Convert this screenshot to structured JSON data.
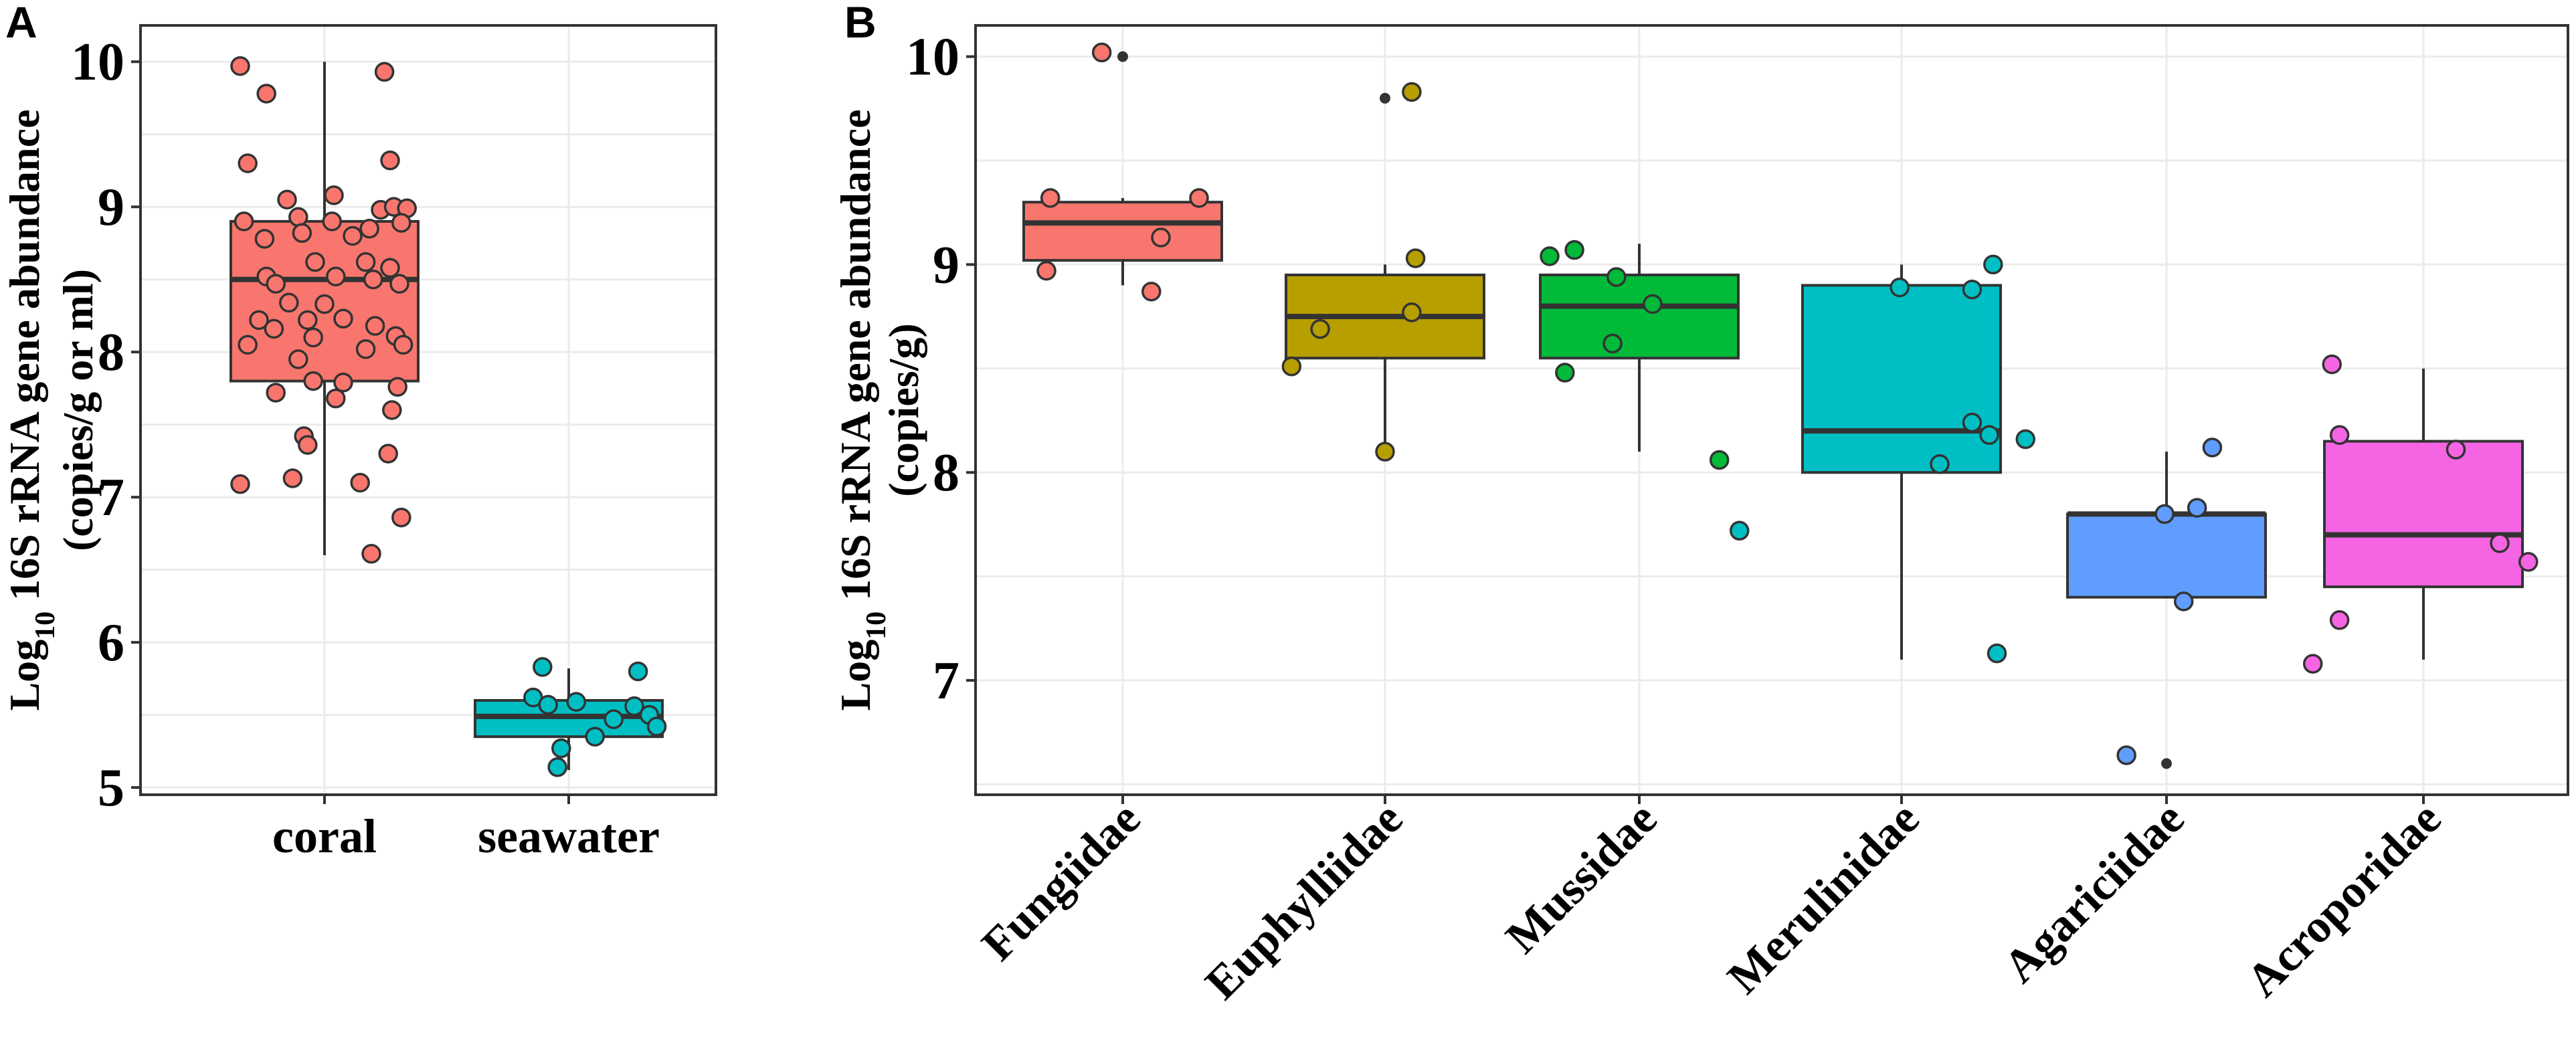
{
  "chart_data": [
    {
      "panel_label": "A",
      "type": "boxplot",
      "ylabel_main": "Log",
      "ylabel_sub": "10",
      "ylabel_rest": " 16S rRNA gene abundance",
      "ylabel_line2": "(copies/g or ml)",
      "ylim": [
        4.95,
        10.25
      ],
      "yticks": [
        5,
        6,
        7,
        8,
        9,
        10
      ],
      "ytick_labels": [
        "5",
        "6",
        "7",
        "8",
        "9",
        "10"
      ],
      "grid": true,
      "categories": [
        "coral",
        "seawater"
      ],
      "groups": [
        {
          "name": "coral",
          "color": "#F8766D",
          "q1": 7.8,
          "median": 8.5,
          "q3": 8.9,
          "whisker_low": 6.6,
          "whisker_high": 10.0,
          "points": [
            {
              "dx": -0.45,
              "y": 9.97
            },
            {
              "dx": 0.32,
              "y": 9.93
            },
            {
              "dx": -0.31,
              "y": 9.78
            },
            {
              "dx": -0.41,
              "y": 9.3
            },
            {
              "dx": 0.35,
              "y": 9.32
            },
            {
              "dx": -0.2,
              "y": 9.05
            },
            {
              "dx": 0.05,
              "y": 9.08
            },
            {
              "dx": 0.3,
              "y": 8.98
            },
            {
              "dx": 0.37,
              "y": 9.0
            },
            {
              "dx": 0.44,
              "y": 8.99
            },
            {
              "dx": -0.43,
              "y": 8.9
            },
            {
              "dx": -0.14,
              "y": 8.93
            },
            {
              "dx": -0.32,
              "y": 8.78
            },
            {
              "dx": -0.12,
              "y": 8.82
            },
            {
              "dx": 0.04,
              "y": 8.9
            },
            {
              "dx": 0.15,
              "y": 8.8
            },
            {
              "dx": 0.24,
              "y": 8.85
            },
            {
              "dx": 0.41,
              "y": 8.89
            },
            {
              "dx": -0.05,
              "y": 8.62
            },
            {
              "dx": 0.22,
              "y": 8.62
            },
            {
              "dx": 0.35,
              "y": 8.58
            },
            {
              "dx": -0.31,
              "y": 8.52
            },
            {
              "dx": -0.26,
              "y": 8.47
            },
            {
              "dx": 0.06,
              "y": 8.52
            },
            {
              "dx": 0.26,
              "y": 8.5
            },
            {
              "dx": 0.4,
              "y": 8.47
            },
            {
              "dx": -0.19,
              "y": 8.34
            },
            {
              "dx": 0.0,
              "y": 8.33
            },
            {
              "dx": -0.35,
              "y": 8.22
            },
            {
              "dx": -0.09,
              "y": 8.22
            },
            {
              "dx": 0.1,
              "y": 8.23
            },
            {
              "dx": 0.38,
              "y": 8.11
            },
            {
              "dx": 0.27,
              "y": 8.18
            },
            {
              "dx": -0.27,
              "y": 8.16
            },
            {
              "dx": -0.41,
              "y": 8.05
            },
            {
              "dx": -0.06,
              "y": 8.1
            },
            {
              "dx": 0.22,
              "y": 8.02
            },
            {
              "dx": -0.14,
              "y": 7.95
            },
            {
              "dx": 0.42,
              "y": 8.05
            },
            {
              "dx": -0.06,
              "y": 7.8
            },
            {
              "dx": 0.1,
              "y": 7.79
            },
            {
              "dx": -0.26,
              "y": 7.72
            },
            {
              "dx": 0.06,
              "y": 7.68
            },
            {
              "dx": 0.39,
              "y": 7.76
            },
            {
              "dx": 0.36,
              "y": 7.6
            },
            {
              "dx": -0.11,
              "y": 7.42
            },
            {
              "dx": -0.09,
              "y": 7.36
            },
            {
              "dx": 0.34,
              "y": 7.3
            },
            {
              "dx": -0.17,
              "y": 7.13
            },
            {
              "dx": -0.45,
              "y": 7.09
            },
            {
              "dx": 0.19,
              "y": 7.1
            },
            {
              "dx": 0.41,
              "y": 6.86
            },
            {
              "dx": 0.25,
              "y": 6.61
            }
          ]
        },
        {
          "name": "seawater",
          "color": "#00BFC4",
          "q1": 5.35,
          "median": 5.49,
          "q3": 5.6,
          "whisker_low": 5.12,
          "whisker_high": 5.82,
          "points": [
            {
              "dx": -0.14,
              "y": 5.83
            },
            {
              "dx": 0.37,
              "y": 5.8
            },
            {
              "dx": -0.19,
              "y": 5.62
            },
            {
              "dx": -0.11,
              "y": 5.57
            },
            {
              "dx": 0.04,
              "y": 5.59
            },
            {
              "dx": 0.35,
              "y": 5.56
            },
            {
              "dx": 0.43,
              "y": 5.5
            },
            {
              "dx": 0.24,
              "y": 5.47
            },
            {
              "dx": 0.47,
              "y": 5.42
            },
            {
              "dx": 0.14,
              "y": 5.35
            },
            {
              "dx": -0.04,
              "y": 5.27
            },
            {
              "dx": -0.06,
              "y": 5.14
            }
          ]
        }
      ]
    },
    {
      "panel_label": "B",
      "type": "boxplot",
      "ylabel_main": "Log",
      "ylabel_sub": "10",
      "ylabel_rest": " 16S rRNA gene abundance",
      "ylabel_line2": "(copies/g)",
      "ylim": [
        6.45,
        10.15
      ],
      "yticks": [
        7,
        8,
        9,
        10
      ],
      "ytick_labels": [
        "7",
        "8",
        "9",
        "10"
      ],
      "grid": true,
      "categories": [
        "Fungiidae",
        "Euphylliidae",
        "Mussidae",
        "Merulinidae",
        "Agariciidae",
        "Acroporidae"
      ],
      "groups": [
        {
          "name": "Fungiidae",
          "color": "#F8766D",
          "q1": 9.02,
          "median": 9.2,
          "q3": 9.3,
          "whisker_low": 8.9,
          "whisker_high": 9.32,
          "outliers": [
            10.0
          ],
          "points": [
            {
              "dx": -0.11,
              "y": 10.02
            },
            {
              "dx": -0.38,
              "y": 9.32
            },
            {
              "dx": 0.4,
              "y": 9.32
            },
            {
              "dx": 0.2,
              "y": 9.13
            },
            {
              "dx": -0.4,
              "y": 8.97
            },
            {
              "dx": 0.15,
              "y": 8.87
            }
          ]
        },
        {
          "name": "Euphylliidae",
          "color": "#B79F00",
          "q1": 8.55,
          "median": 8.75,
          "q3": 8.95,
          "whisker_low": 8.1,
          "whisker_high": 9.0,
          "outliers": [
            9.8
          ],
          "points": [
            {
              "dx": 0.14,
              "y": 9.83
            },
            {
              "dx": 0.16,
              "y": 9.03
            },
            {
              "dx": -0.34,
              "y": 8.69
            },
            {
              "dx": 0.14,
              "y": 8.77
            },
            {
              "dx": -0.49,
              "y": 8.51
            },
            {
              "dx": 0.0,
              "y": 8.1
            }
          ]
        },
        {
          "name": "Mussidae",
          "color": "#00BA38",
          "q1": 8.55,
          "median": 8.8,
          "q3": 8.95,
          "whisker_low": 8.1,
          "whisker_high": 9.1,
          "outliers": [],
          "points": [
            {
              "dx": -0.47,
              "y": 9.04
            },
            {
              "dx": -0.34,
              "y": 9.07
            },
            {
              "dx": -0.12,
              "y": 8.94
            },
            {
              "dx": 0.07,
              "y": 8.81
            },
            {
              "dx": -0.14,
              "y": 8.62
            },
            {
              "dx": -0.39,
              "y": 8.48
            },
            {
              "dx": 0.42,
              "y": 8.06
            }
          ]
        },
        {
          "name": "Merulinidae",
          "color": "#00BFC4",
          "q1": 8.0,
          "median": 8.2,
          "q3": 8.9,
          "whisker_low": 7.1,
          "whisker_high": 9.0,
          "outliers": [],
          "points": [
            {
              "dx": 0.48,
              "y": 9.0
            },
            {
              "dx": -0.01,
              "y": 8.89
            },
            {
              "dx": 0.37,
              "y": 8.88
            },
            {
              "dx": 0.37,
              "y": 8.24
            },
            {
              "dx": 0.46,
              "y": 8.18
            },
            {
              "dx": 0.65,
              "y": 8.16
            },
            {
              "dx": 0.2,
              "y": 8.04
            },
            {
              "dx": -0.85,
              "y": 7.72
            },
            {
              "dx": 0.5,
              "y": 7.13
            }
          ]
        },
        {
          "name": "Agariciidae",
          "color": "#619CFF",
          "q1": 7.4,
          "median": 7.8,
          "q3": 7.8,
          "whisker_low": 7.4,
          "whisker_high": 8.1,
          "outliers": [
            6.6
          ],
          "points": [
            {
              "dx": 0.24,
              "y": 8.12
            },
            {
              "dx": 0.16,
              "y": 7.83
            },
            {
              "dx": -0.01,
              "y": 7.8
            },
            {
              "dx": 0.09,
              "y": 7.38
            },
            {
              "dx": -0.21,
              "y": 6.64
            }
          ]
        },
        {
          "name": "Acroporidae",
          "color": "#F564E3",
          "q1": 7.45,
          "median": 7.7,
          "q3": 8.15,
          "whisker_low": 7.1,
          "whisker_high": 8.5,
          "outliers": [],
          "points": [
            {
              "dx": -0.48,
              "y": 8.52
            },
            {
              "dx": -0.44,
              "y": 8.18
            },
            {
              "dx": 0.17,
              "y": 8.11
            },
            {
              "dx": 0.4,
              "y": 7.66
            },
            {
              "dx": 0.55,
              "y": 7.57
            },
            {
              "dx": -0.44,
              "y": 7.29
            },
            {
              "dx": -0.58,
              "y": 7.08
            }
          ]
        }
      ]
    }
  ]
}
